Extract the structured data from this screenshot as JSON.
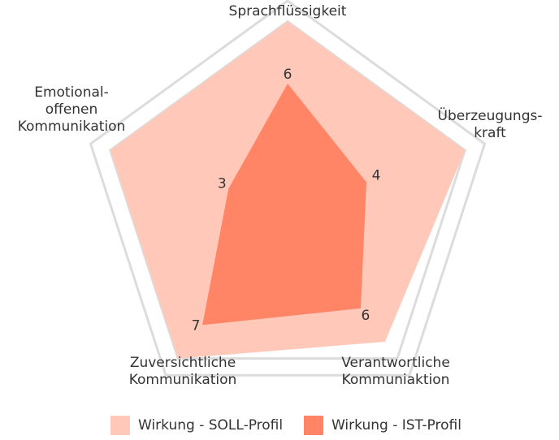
{
  "chart_data": {
    "type": "radar",
    "axes": [
      {
        "label_lines": [
          "Sprachflüssigkeit"
        ]
      },
      {
        "label_lines": [
          "Überzeugungs-",
          "kraft"
        ]
      },
      {
        "label_lines": [
          "Verantwortliche",
          "Kommuniaktion"
        ]
      },
      {
        "label_lines": [
          "Zuversichtliche",
          "Kommunikation"
        ]
      },
      {
        "label_lines": [
          "Emotional-",
          "offenen",
          "Kommunikation"
        ]
      }
    ],
    "range": [
      0,
      10
    ],
    "grid_levels": [
      9,
      10
    ],
    "series": [
      {
        "name": "Wirkung - SOLL-Profil",
        "color": "#FFC8B8",
        "values": [
          9,
          9,
          8,
          9,
          9
        ]
      },
      {
        "name": "Wirkung - IST-Profil",
        "color": "#FF8566",
        "values": [
          6,
          4,
          6,
          7,
          3
        ]
      }
    ],
    "value_labels": [
      "6",
      "4",
      "6",
      "7",
      "3"
    ],
    "grid_color": "#DCDCDC",
    "legend_position": "bottom"
  }
}
